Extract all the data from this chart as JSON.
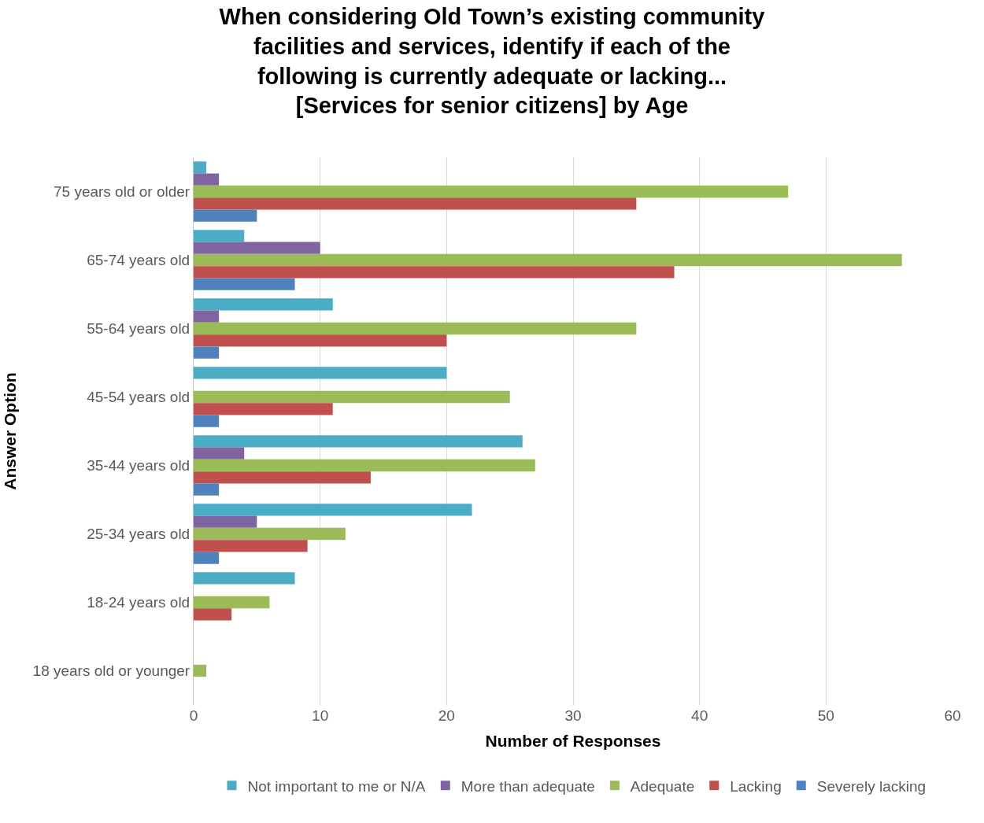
{
  "chart_data": {
    "type": "bar",
    "orientation": "horizontal",
    "title": "When considering Old Town’s existing community facilities and services, identify if each of the following is currently adequate or lacking... [Services for senior citizens] by Age",
    "xlabel": "Number of Responses",
    "ylabel": "Answer Option",
    "categories": [
      "75 years old or older",
      "65-74 years old",
      "55-64 years old",
      "45-54 years old",
      "35-44 years old",
      "25-34 years old",
      "18-24 years old",
      "18 years old or younger"
    ],
    "series": [
      {
        "name": "Not important to me or N/A",
        "color": "#4bacc6",
        "values": [
          1,
          4,
          11,
          20,
          26,
          22,
          8,
          0
        ]
      },
      {
        "name": "More than adequate",
        "color": "#8064a2",
        "values": [
          2,
          10,
          2,
          0,
          4,
          5,
          0,
          0
        ]
      },
      {
        "name": "Adequate",
        "color": "#9bbb59",
        "values": [
          47,
          56,
          35,
          25,
          27,
          12,
          6,
          1
        ]
      },
      {
        "name": "Lacking",
        "color": "#c0504d",
        "values": [
          35,
          38,
          20,
          11,
          14,
          9,
          3,
          0
        ]
      },
      {
        "name": "Severely lacking",
        "color": "#4f81bd",
        "values": [
          5,
          8,
          2,
          2,
          2,
          2,
          0,
          0
        ]
      }
    ],
    "xlim": [
      0,
      60
    ],
    "xticks": [
      0,
      10,
      20,
      30,
      40,
      50,
      60
    ],
    "grid": "x",
    "legend": "bottom"
  }
}
